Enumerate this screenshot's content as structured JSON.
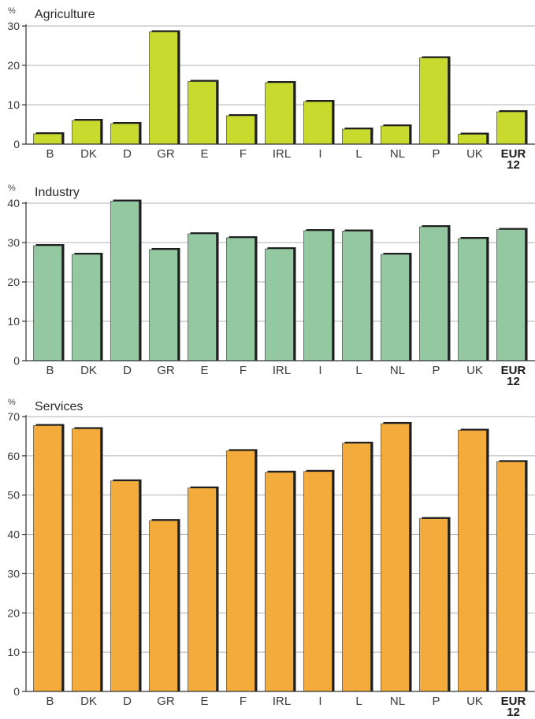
{
  "chart_data": [
    {
      "type": "bar",
      "title": "Agriculture",
      "ylabel": "%",
      "ylim": [
        0,
        30
      ],
      "yticks": [
        "0",
        "10",
        "20",
        "30"
      ],
      "categories": [
        "B",
        "DK",
        "D",
        "GR",
        "E",
        "F",
        "IRL",
        "I",
        "L",
        "NL",
        "P",
        "UK",
        "EUR 12"
      ],
      "values": [
        2.6,
        6.0,
        5.2,
        28.5,
        15.9,
        7.2,
        15.6,
        10.8,
        3.8,
        4.6,
        21.9,
        2.5,
        8.2
      ],
      "color": "#c8da2e",
      "grid": true
    },
    {
      "type": "bar",
      "title": "Industry",
      "ylabel": "%",
      "ylim": [
        0,
        40
      ],
      "yticks": [
        "0",
        "10",
        "20",
        "30",
        "40"
      ],
      "categories": [
        "B",
        "DK",
        "D",
        "GR",
        "E",
        "F",
        "IRL",
        "I",
        "L",
        "NL",
        "P",
        "UK",
        "EUR 12"
      ],
      "values": [
        29.2,
        27.0,
        40.5,
        28.2,
        32.2,
        31.2,
        28.4,
        33.0,
        32.9,
        27.0,
        34.0,
        31.0,
        33.3
      ],
      "color": "#93c8a0",
      "grid": true
    },
    {
      "type": "bar",
      "title": "Services",
      "ylabel": "%",
      "ylim": [
        0,
        70
      ],
      "yticks": [
        "0",
        "10",
        "20",
        "30",
        "40",
        "50",
        "60",
        "70"
      ],
      "categories": [
        "B",
        "DK",
        "D",
        "GR",
        "E",
        "F",
        "IRL",
        "I",
        "L",
        "NL",
        "P",
        "UK",
        "EUR 12"
      ],
      "values": [
        67.7,
        66.9,
        53.6,
        43.5,
        51.8,
        61.3,
        55.8,
        56.0,
        63.2,
        68.2,
        44.0,
        66.5,
        58.5
      ],
      "color": "#f3ac3b",
      "grid": true
    }
  ]
}
